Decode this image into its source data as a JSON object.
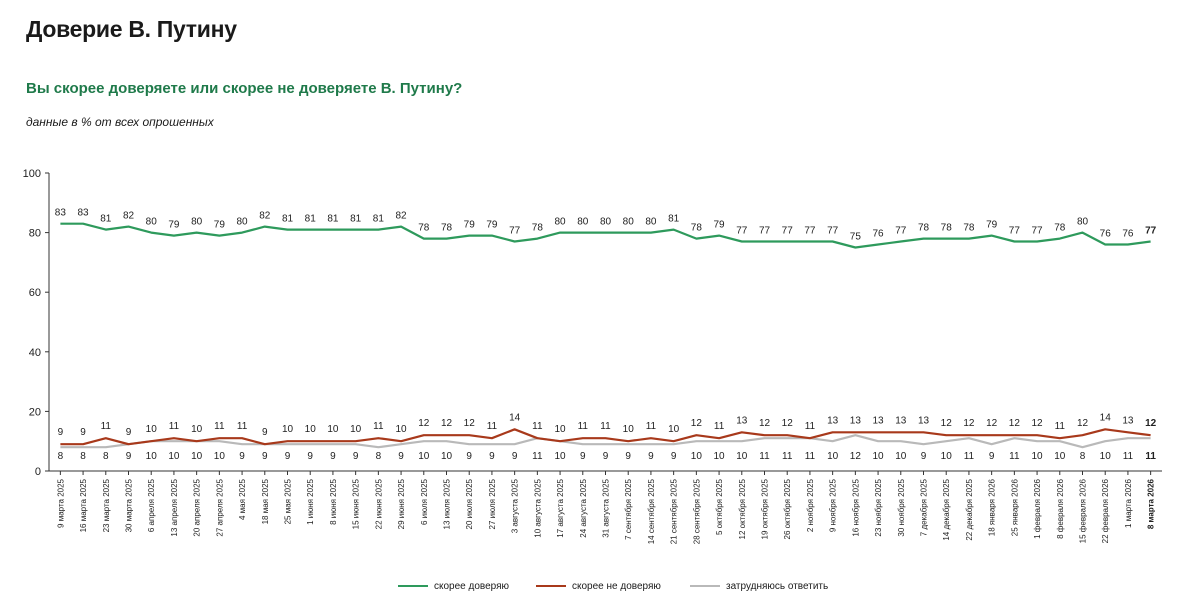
{
  "title": "Доверие В. Путину",
  "question": "Вы скорее доверяете или скорее не доверяете В. Путину?",
  "note": "данные в % от всех опрошенных",
  "chart_data": {
    "type": "line",
    "ylim": [
      0,
      100
    ],
    "yticks": [
      "0",
      "20",
      "40",
      "60",
      "80",
      "100"
    ],
    "categories": [
      "9 марта 2025",
      "16 марта 2025",
      "23 марта 2025",
      "30 марта 2025",
      "6 апреля 2025",
      "13 апреля 2025",
      "20 апреля 2025",
      "27 апреля 2025",
      "4 мая 2025",
      "18 мая 2025",
      "25 мая 2025",
      "1 июня 2025",
      "8 июня 2025",
      "15 июня 2025",
      "22 июня 2025",
      "29 июня 2025",
      "6 июля 2025",
      "13 июля 2025",
      "20 июля 2025",
      "27 июля 2025",
      "3 августа 2025",
      "10 августа 2025",
      "17 августа 2025",
      "24 августа 2025",
      "31 августа 2025",
      "7 сентября 2025",
      "14 сентября 2025",
      "21 сентября 2025",
      "28 сентября 2025",
      "5 октября 2025",
      "12 октября 2025",
      "19 октября 2025",
      "26 октября 2025",
      "2 ноября 2025",
      "9 ноября 2025",
      "16 ноября 2025",
      "23 ноября 2025",
      "30 ноября 2025",
      "7 декабря 2025",
      "14 декабря 2025",
      "22 декабря 2025",
      "18 января 2026",
      "25 января 2026",
      "1 февраля 2026",
      "8 февраля 2026",
      "15 февраля 2026",
      "22 февраля 2026",
      "1 марта 2026",
      "8 марта 2026"
    ],
    "series": [
      {
        "name": "скорее доверяю",
        "color": "#2e9a5c",
        "values": [
          83,
          83,
          81,
          82,
          80,
          79,
          80,
          79,
          80,
          82,
          81,
          81,
          81,
          81,
          81,
          82,
          78,
          78,
          79,
          79,
          77,
          78,
          80,
          80,
          80,
          80,
          80,
          81,
          78,
          79,
          77,
          77,
          77,
          77,
          77,
          75,
          76,
          77,
          78,
          78,
          78,
          79,
          77,
          77,
          78,
          80,
          76,
          76,
          77
        ]
      },
      {
        "name": "скорее не доверяю",
        "color": "#a8391b",
        "values": [
          9,
          9,
          11,
          9,
          10,
          11,
          10,
          11,
          11,
          9,
          10,
          10,
          10,
          10,
          11,
          10,
          12,
          12,
          12,
          11,
          14,
          11,
          10,
          11,
          11,
          10,
          11,
          10,
          12,
          11,
          13,
          12,
          12,
          11,
          13,
          13,
          13,
          13,
          13,
          12,
          12,
          12,
          12,
          12,
          11,
          12,
          14,
          13,
          12
        ]
      },
      {
        "name": "затрудняюсь ответить",
        "color": "#b9b9b9",
        "values": [
          8,
          8,
          8,
          9,
          10,
          10,
          10,
          10,
          9,
          9,
          9,
          9,
          9,
          9,
          8,
          9,
          10,
          10,
          9,
          9,
          9,
          11,
          10,
          9,
          9,
          9,
          9,
          9,
          10,
          10,
          10,
          11,
          11,
          11,
          10,
          12,
          10,
          10,
          9,
          10,
          11,
          9,
          11,
          10,
          10,
          8,
          10,
          11,
          11
        ]
      }
    ]
  }
}
